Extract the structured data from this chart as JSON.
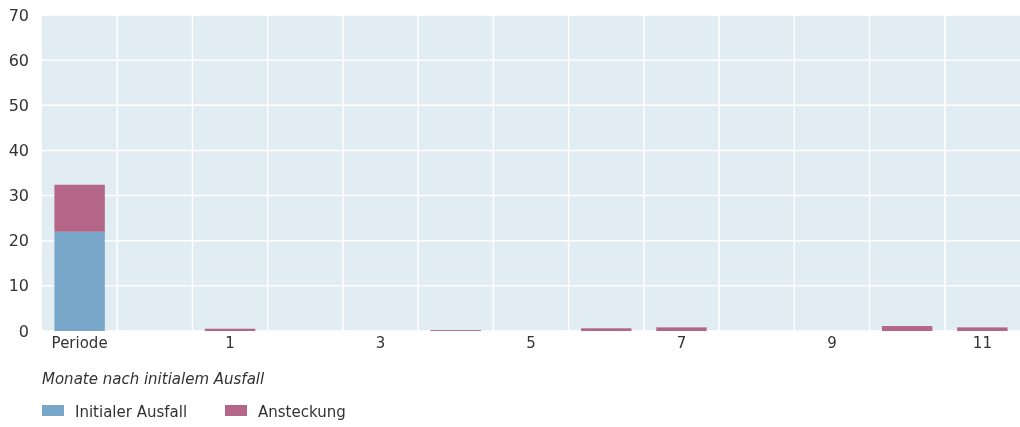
{
  "chart_data": {
    "type": "bar",
    "stacked": true,
    "xlabel": "Monate nach initialem Ausfall",
    "categories": [
      "Periode",
      null,
      "1",
      null,
      "3",
      null,
      "5",
      null,
      "7",
      null,
      "9",
      null,
      "11"
    ],
    "series": [
      {
        "name": "Initialer Ausfall",
        "color": "#78a7c9",
        "values": [
          22,
          0,
          0,
          0,
          0,
          0,
          0,
          0,
          0,
          0,
          0,
          0,
          0
        ]
      },
      {
        "name": "Ansteckung",
        "color": "#b36688",
        "values": [
          10.4,
          0,
          0.5,
          0,
          0,
          0.2,
          0,
          0.6,
          0.8,
          0,
          0,
          1.1,
          0.8
        ]
      }
    ],
    "ylim": [
      0,
      70
    ],
    "yticks": [
      0,
      10,
      20,
      30,
      40,
      50,
      60,
      70
    ],
    "grid": true,
    "legend": "bottom"
  }
}
